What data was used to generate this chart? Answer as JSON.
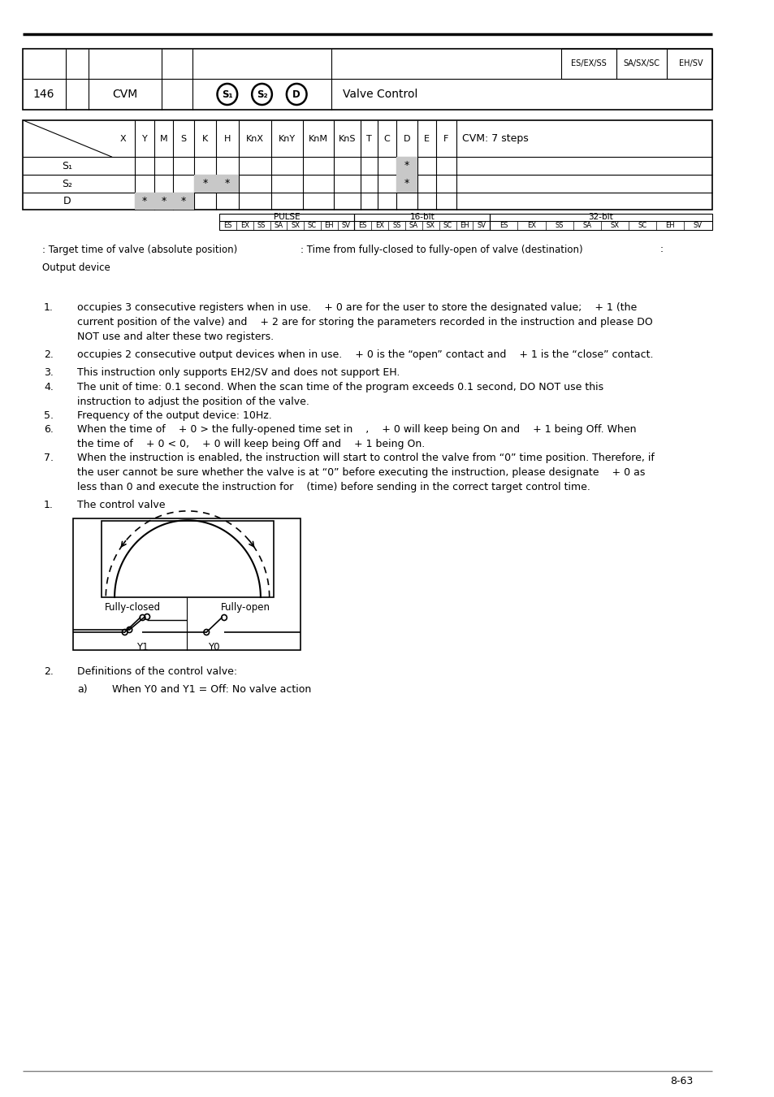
{
  "bg_color": "#ffffff",
  "page_num": "8-63",
  "col_labels": [
    "X",
    "Y",
    "M",
    "S",
    "K",
    "H",
    "KnX",
    "KnY",
    "KnM",
    "KnS",
    "T",
    "C",
    "D",
    "E",
    "F"
  ],
  "row_labels": [
    "S₁",
    "S₂",
    "D"
  ],
  "pulse_cells": [
    "ES",
    "EX",
    "SS",
    "SA",
    "SX",
    "SC",
    "EH",
    "SV"
  ],
  "support_labels": [
    "ES/EX/SS",
    "SA/SX/SC",
    "EH/SV"
  ]
}
